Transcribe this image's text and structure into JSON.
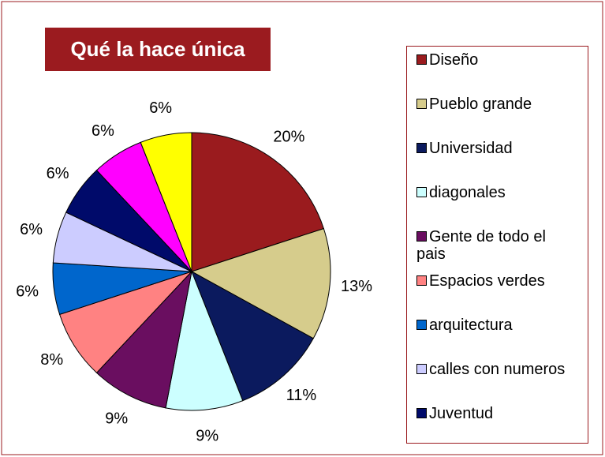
{
  "chart_data": {
    "type": "pie",
    "title": "Qué la hace única",
    "categories": [
      "Diseño",
      "Pueblo grande",
      "Universidad",
      "diagonales",
      "Gente de todo el pais",
      "Espacios verdes",
      "arquitectura",
      "calles con numeros",
      "Juventud",
      null,
      null
    ],
    "values": [
      20,
      13,
      11,
      9,
      9,
      8,
      6,
      6,
      6,
      6,
      6
    ],
    "value_labels": [
      "20%",
      "13%",
      "11%",
      "9%",
      "9%",
      "8%",
      "6%",
      "6%",
      "6%",
      "6%",
      "6%"
    ],
    "colors": [
      "#9a1b1e",
      "#d6cc8c",
      "#0b1a5e",
      "#ccffff",
      "#6a0e60",
      "#ff8282",
      "#0066cc",
      "#ccccff",
      "#000a6a",
      "#ff00ff",
      "#ffff00"
    ],
    "legend": "right"
  }
}
